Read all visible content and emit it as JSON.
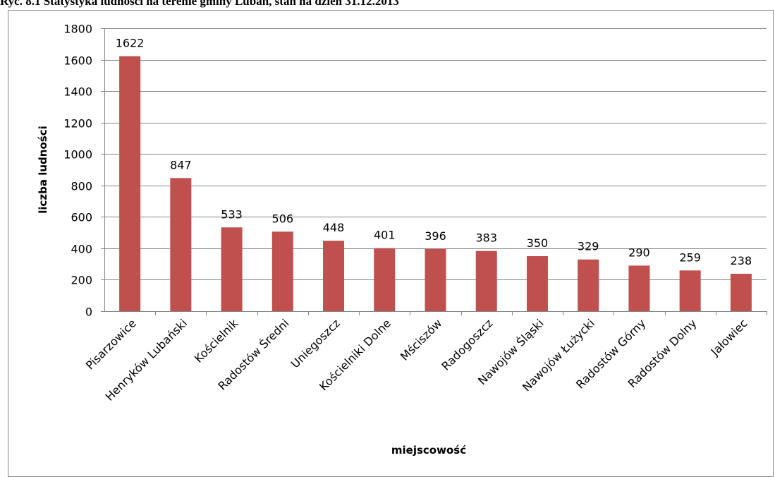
{
  "caption": "Ryc. 8.1 Statystyka ludności na terenie gminy Lubań, stan na dzień 31.12.2013",
  "chart_data": {
    "type": "bar",
    "title": "",
    "xlabel": "miejscowość",
    "ylabel": "liczba ludności",
    "ylim": [
      0,
      1800
    ],
    "yticks": [
      0,
      200,
      400,
      600,
      800,
      1000,
      1200,
      1400,
      1600,
      1800
    ],
    "grid": true,
    "bar_color": "#C0504D",
    "categories": [
      "Pisarzowice",
      "Henryków Lubański",
      "Kościelnik",
      "Radostów Średni",
      "Uniegoszcz",
      "Kościelniki Dolne",
      "Mściszów",
      "Radogoszcz",
      "Nawojów Śląski",
      "Nawojów Łużycki",
      "Radostów Górny",
      "Radostów Dolny",
      "Jałowiec"
    ],
    "values": [
      1622,
      847,
      533,
      506,
      448,
      401,
      396,
      383,
      350,
      329,
      290,
      259,
      238
    ]
  }
}
